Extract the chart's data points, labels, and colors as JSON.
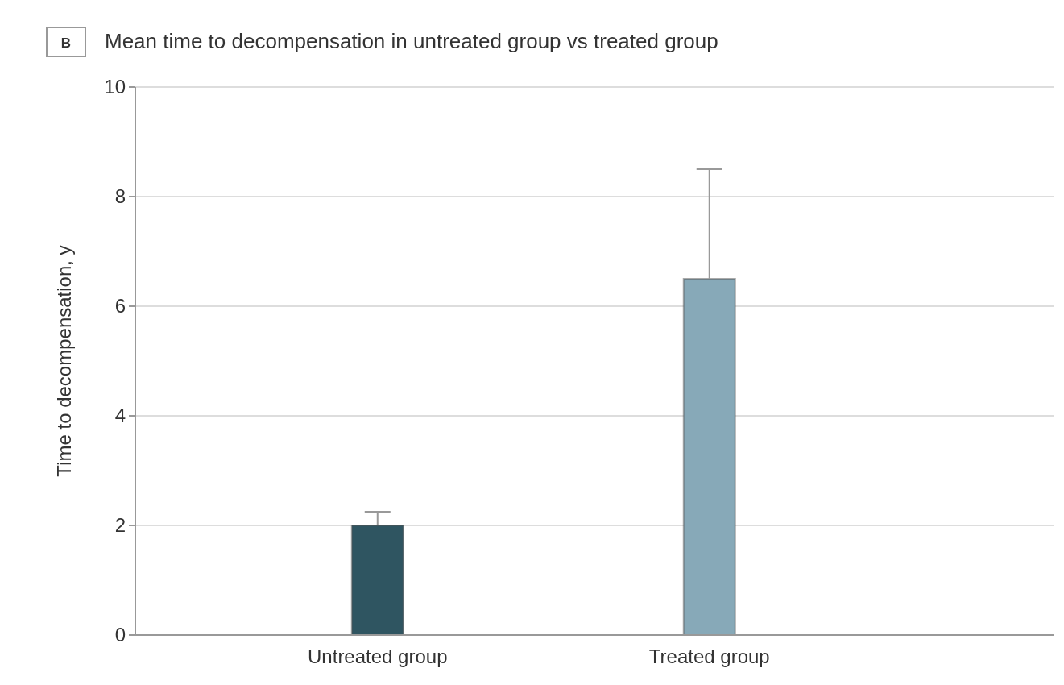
{
  "chart_data": {
    "type": "bar",
    "title": "Mean time to decompensation in untreated group vs treated group",
    "annotations": [
      "B"
    ],
    "ylabel": "Time to decompensation, y",
    "categories": [
      "Untreated group",
      "Treated group"
    ],
    "values": [
      2,
      6.5
    ],
    "colors": [
      "#2f5561",
      "#87a9b8"
    ],
    "errors": [
      [
        2,
        2.25
      ],
      [
        6.5,
        8.5
      ]
    ],
    "ylim": [
      0,
      10
    ],
    "yticks": [
      0,
      2,
      4,
      6,
      8,
      10
    ],
    "grid": "y"
  }
}
